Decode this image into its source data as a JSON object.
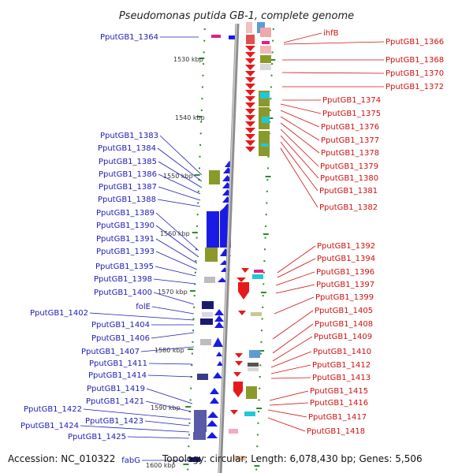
{
  "title": "Pseudomonas putida GB-1, complete genome",
  "footer": {
    "accession": "Accession: NC_010322",
    "summary": "Topology: circular; Length: 6,078,430 bp; Genes: 5,506"
  },
  "scale_labels": [
    "1530 kbp",
    "1540 kbp",
    "1550 kbp",
    "1560 kbp",
    "1570 kbp",
    "1580 kbp",
    "1590 kbp",
    "1600 kbp"
  ],
  "left_genes": [
    "PputGB1_1364",
    "PputGB1_1383",
    "PputGB1_1384",
    "PputGB1_1385",
    "PputGB1_1386",
    "PputGB1_1387",
    "PputGB1_1388",
    "PputGB1_1389",
    "PputGB1_1390",
    "PputGB1_1391",
    "PputGB1_1393",
    "PputGB1_1395",
    "PputGB1_1398",
    "PputGB1_1400",
    "folE",
    "PputGB1_1402",
    "PputGB1_1404",
    "PputGB1_1406",
    "PputGB1_1407",
    "PputGB1_1411",
    "PputGB1_1414",
    "PputGB1_1419",
    "PputGB1_1421",
    "PputGB1_1422",
    "PputGB1_1423",
    "PputGB1_1424",
    "PputGB1_1425",
    "fabG"
  ],
  "right_genes": [
    "ihfB",
    "PputGB1_1366",
    "PputGB1_1368",
    "PputGB1_1370",
    "PputGB1_1372",
    "PputGB1_1374",
    "PputGB1_1375",
    "PputGB1_1376",
    "PputGB1_1377",
    "PputGB1_1378",
    "PputGB1_1379",
    "PputGB1_1380",
    "PputGB1_1381",
    "PputGB1_1382",
    "PputGB1_1392",
    "PputGB1_1394",
    "PputGB1_1396",
    "PputGB1_1397",
    "PputGB1_1399",
    "PputGB1_1405",
    "PputGB1_1408",
    "PputGB1_1409",
    "PputGB1_1410",
    "PputGB1_1412",
    "PputGB1_1413",
    "PputGB1_1415",
    "PputGB1_1416",
    "PputGB1_1417",
    "PputGB1_1418"
  ],
  "colors": {
    "forward_strand": "#1a1ae6",
    "reverse_strand": "#e61a1a",
    "left_label": "#1c1cb8",
    "right_label": "#d01010",
    "backbone": "#8c8c8c",
    "scale_tick": "#2d8a2d"
  }
}
